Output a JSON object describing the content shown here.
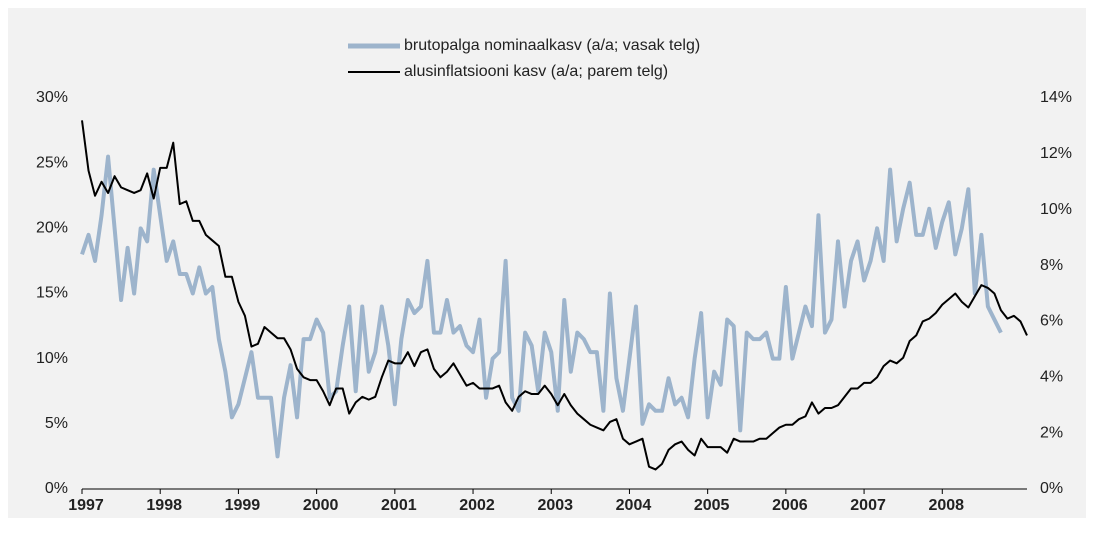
{
  "chart_data": {
    "type": "line",
    "categories": [
      "1997",
      null,
      null,
      null,
      null,
      null,
      null,
      null,
      null,
      null,
      null,
      null,
      "1998",
      null,
      null,
      null,
      null,
      null,
      null,
      null,
      null,
      null,
      null,
      null,
      "1999",
      null,
      null,
      null,
      null,
      null,
      null,
      null,
      null,
      null,
      null,
      null,
      "2000",
      null,
      null,
      null,
      null,
      null,
      null,
      null,
      null,
      null,
      null,
      null,
      "2001",
      null,
      null,
      null,
      null,
      null,
      null,
      null,
      null,
      null,
      null,
      null,
      "2002",
      null,
      null,
      null,
      null,
      null,
      null,
      null,
      null,
      null,
      null,
      null,
      "2003",
      null,
      null,
      null,
      null,
      null,
      null,
      null,
      null,
      null,
      null,
      null,
      "2004",
      null,
      null,
      null,
      null,
      null,
      null,
      null,
      null,
      null,
      null,
      null,
      "2005",
      null,
      null,
      null,
      null,
      null,
      null,
      null,
      null,
      null,
      null,
      null,
      "2006",
      null,
      null,
      null,
      null,
      null,
      null,
      null,
      null,
      null,
      null,
      null,
      "2007",
      null,
      null,
      null,
      null,
      null,
      null,
      null,
      null,
      null,
      null,
      null,
      "2008",
      null,
      null,
      null,
      null,
      null,
      null,
      null,
      null,
      null,
      null,
      null,
      null,
      null
    ],
    "series": [
      {
        "name": "brutopalga nominaalkasv (a/a; vasak telg)",
        "color": "#9db4cc",
        "axis": "y",
        "values": [
          18,
          19.5,
          17.5,
          21,
          25.5,
          20,
          14.5,
          18.5,
          15,
          20,
          19,
          24.5,
          21,
          17.5,
          19,
          16.5,
          16.5,
          15,
          17,
          15,
          15.5,
          11.5,
          9,
          5.5,
          6.5,
          8.5,
          10.5,
          7,
          7,
          7,
          2.5,
          7,
          9.5,
          5.5,
          11.5,
          11.5,
          13,
          12,
          7,
          7.5,
          11,
          14,
          7.5,
          14,
          9,
          10.5,
          14,
          11,
          6.5,
          11.5,
          14.5,
          13.5,
          14,
          17.5,
          12,
          12,
          14.5,
          12,
          12.5,
          11,
          10.5,
          13,
          7,
          10,
          10.5,
          17.5,
          7,
          6,
          12,
          11,
          7.5,
          12,
          10.5,
          6,
          14.5,
          9,
          12,
          11.5,
          10.5,
          10.5,
          6,
          15,
          8.5,
          6,
          10,
          14,
          5,
          6.5,
          6,
          6,
          8.5,
          6.5,
          7,
          5.5,
          10,
          13.5,
          5.5,
          9,
          8,
          13,
          12.5,
          4.5,
          12,
          11.5,
          11.5,
          12,
          10,
          10,
          15.5,
          10,
          12,
          14,
          12.5,
          21,
          12,
          13,
          19,
          14,
          17.5,
          19,
          16,
          17.5,
          20,
          17.5,
          24.5,
          19,
          21.5,
          23.5,
          19.5,
          19.5,
          21.5,
          18.5,
          20.5,
          22,
          18,
          20,
          23,
          15,
          19.5,
          14,
          13,
          12,
          null,
          null,
          null,
          null
        ]
      },
      {
        "name": "alusinflatsiooni kasv (a/a; parem telg)",
        "color": "#000000",
        "axis": "y2",
        "values": [
          13.2,
          11.4,
          10.5,
          11,
          10.6,
          11.2,
          10.8,
          10.7,
          10.6,
          10.7,
          11.3,
          10.4,
          11.5,
          11.5,
          12.4,
          10.2,
          10.3,
          9.6,
          9.6,
          9.1,
          8.9,
          8.7,
          7.6,
          7.6,
          6.7,
          6.2,
          5.1,
          5.2,
          5.8,
          5.6,
          5.4,
          5.4,
          5,
          4.3,
          4,
          3.9,
          3.9,
          3.5,
          3,
          3.6,
          3.6,
          2.7,
          3.1,
          3.3,
          3.2,
          3.3,
          4,
          4.6,
          4.5,
          4.5,
          4.9,
          4.4,
          4.9,
          5,
          4.3,
          4,
          4.2,
          4.5,
          4.1,
          3.7,
          3.8,
          3.6,
          3.6,
          3.6,
          3.7,
          3.1,
          2.8,
          3.3,
          3.5,
          3.4,
          3.4,
          3.7,
          3.4,
          3,
          3.4,
          3,
          2.7,
          2.5,
          2.3,
          2.2,
          2.1,
          2.4,
          2.5,
          1.8,
          1.6,
          1.7,
          1.8,
          0.8,
          0.7,
          0.9,
          1.4,
          1.6,
          1.7,
          1.4,
          1.2,
          1.8,
          1.5,
          1.5,
          1.5,
          1.3,
          1.8,
          1.7,
          1.7,
          1.7,
          1.8,
          1.8,
          2,
          2.2,
          2.3,
          2.3,
          2.5,
          2.6,
          3.1,
          2.7,
          2.9,
          2.9,
          3,
          3.3,
          3.6,
          3.6,
          3.8,
          3.8,
          4,
          4.4,
          4.6,
          4.5,
          4.7,
          5.3,
          5.5,
          6,
          6.1,
          6.3,
          6.6,
          6.8,
          7,
          6.7,
          6.5,
          6.9,
          7.3,
          7.2,
          7,
          6.4,
          6.1,
          6.2,
          6,
          5.5
        ]
      }
    ],
    "ylim": [
      0,
      30
    ],
    "yticks": [
      {
        "value": 0,
        "label": "0%"
      },
      {
        "value": 5,
        "label": "5%"
      },
      {
        "value": 10,
        "label": "10%"
      },
      {
        "value": 15,
        "label": "15%"
      },
      {
        "value": 20,
        "label": "20%"
      },
      {
        "value": 25,
        "label": "25%"
      },
      {
        "value": 30,
        "label": "30%"
      }
    ],
    "y2lim": [
      0,
      14
    ],
    "y2ticks": [
      {
        "value": 0,
        "label": "0%"
      },
      {
        "value": 2,
        "label": "2%"
      },
      {
        "value": 4,
        "label": "4%"
      },
      {
        "value": 6,
        "label": "6%"
      },
      {
        "value": 8,
        "label": "8%"
      },
      {
        "value": 10,
        "label": "10%"
      },
      {
        "value": 12,
        "label": "12%"
      },
      {
        "value": 14,
        "label": "14%"
      }
    ],
    "legend": "top"
  }
}
